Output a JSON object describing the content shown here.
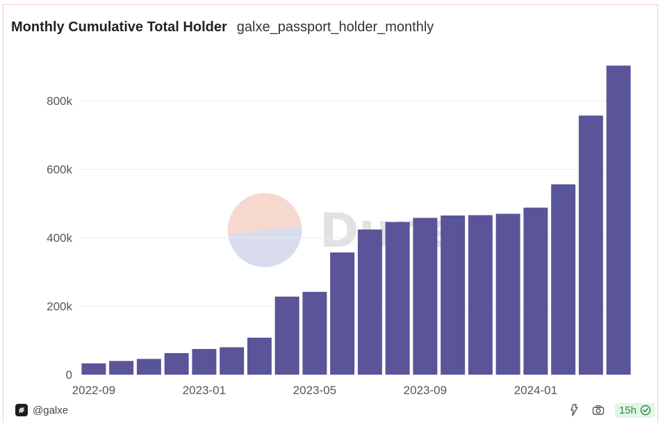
{
  "header": {
    "title": "Monthly Cumulative Total Holder",
    "subtitle": "galxe_passport_holder_monthly"
  },
  "footer": {
    "account": "@galxe",
    "refresh_age": "15h"
  },
  "watermark": {
    "text": "Dune"
  },
  "colors": {
    "bar": "#5a5499",
    "grid": "#ececec",
    "accent_border": "#f1c9bd",
    "refresh_badge": "#2e8b47"
  },
  "icons": [
    "galxe-logo-icon",
    "refresh-icon",
    "camera-icon",
    "check-circle-icon"
  ],
  "chart_data": {
    "type": "bar",
    "title": "Monthly Cumulative Total Holder",
    "xlabel": "",
    "ylabel": "",
    "categories": [
      "2022-09",
      "2022-10",
      "2022-11",
      "2022-12",
      "2023-01",
      "2023-02",
      "2023-03",
      "2023-04",
      "2023-05",
      "2023-06",
      "2023-07",
      "2023-08",
      "2023-09",
      "2023-10",
      "2023-11",
      "2023-12",
      "2024-01",
      "2024-02",
      "2024-03",
      "2024-04"
    ],
    "values": [
      33000,
      40000,
      46000,
      63000,
      75000,
      80000,
      108000,
      228000,
      242000,
      357000,
      424000,
      446000,
      458000,
      465000,
      466000,
      470000,
      488000,
      556000,
      757000,
      903000
    ],
    "x_tick_labels": [
      "2022-09",
      "2023-01",
      "2023-05",
      "2023-09",
      "2024-01"
    ],
    "ylim": [
      0,
      920000
    ],
    "y_ticks": [
      0,
      200000,
      400000,
      600000,
      800000
    ],
    "y_tick_labels": [
      "0",
      "200k",
      "400k",
      "600k",
      "800k"
    ],
    "grid": true,
    "legend": "none"
  }
}
